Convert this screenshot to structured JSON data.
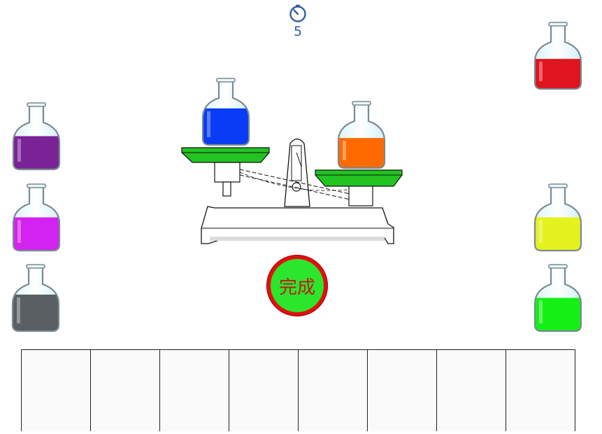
{
  "timer": {
    "value": "5",
    "icon": "stopwatch-icon"
  },
  "done_button": {
    "label": "完成"
  },
  "scale": {
    "left_pan_color": "#22c422",
    "right_pan_color": "#22c422"
  },
  "bottles": [
    {
      "name": "bottle-blue",
      "color": "#0a3cf5",
      "fill": 0.55,
      "location": "scale-left"
    },
    {
      "name": "bottle-orange",
      "color": "#ff6a00",
      "fill": 0.45,
      "location": "scale-right"
    },
    {
      "name": "bottle-red",
      "color": "#e0141e",
      "fill": 0.45,
      "location": "shelf-right"
    },
    {
      "name": "bottle-purple",
      "color": "#7a2396",
      "fill": 0.5,
      "location": "shelf-left"
    },
    {
      "name": "bottle-magenta",
      "color": "#d223f0",
      "fill": 0.5,
      "location": "shelf-left"
    },
    {
      "name": "bottle-gray",
      "color": "#5a5f64",
      "fill": 0.55,
      "location": "shelf-left"
    },
    {
      "name": "bottle-yellow",
      "color": "#e4f21e",
      "fill": 0.5,
      "location": "shelf-right"
    },
    {
      "name": "bottle-green",
      "color": "#16ef16",
      "fill": 0.5,
      "location": "shelf-right"
    }
  ],
  "slots": [
    "",
    "",
    "",
    "",
    "",
    "",
    "",
    ""
  ]
}
